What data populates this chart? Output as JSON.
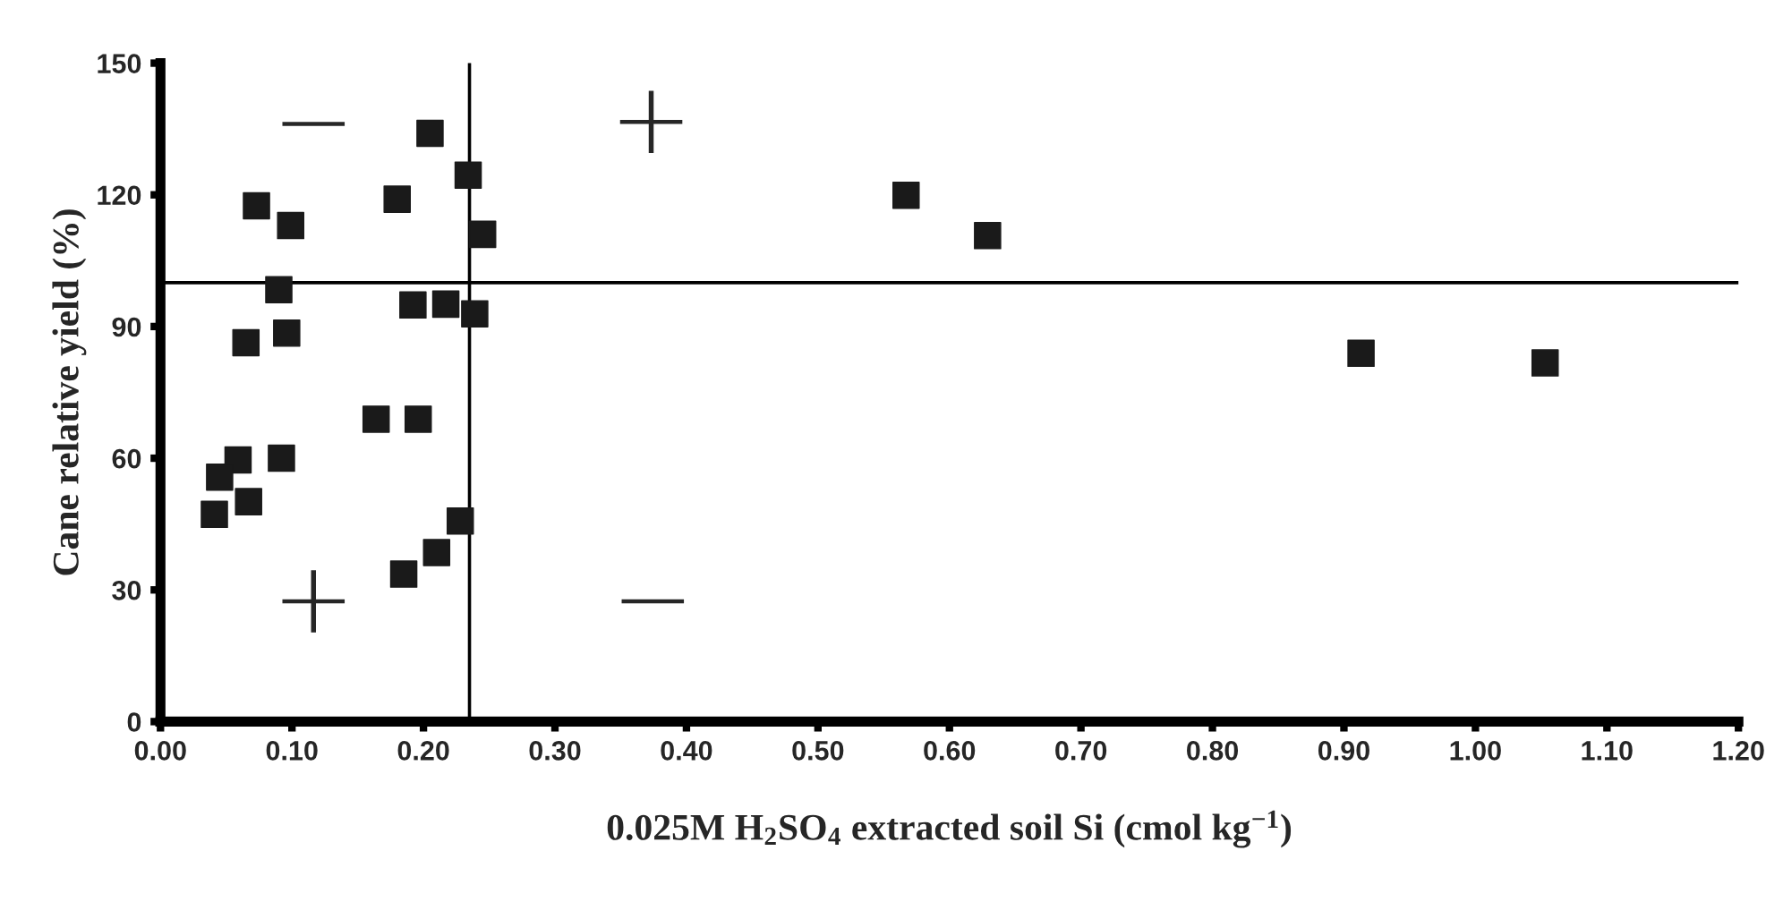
{
  "chart_data": {
    "type": "scatter",
    "xlabel": "0.025M H$_{2}$SO$_{4}$ extracted soil Si (cmol kg$^{−1}$)",
    "ylabel": "Cane relative yield (%)",
    "x": [
      0.205,
      0.234,
      0.073,
      0.099,
      0.18,
      0.245,
      0.09,
      0.192,
      0.217,
      0.239,
      0.096,
      0.065,
      0.164,
      0.196,
      0.059,
      0.092,
      0.045,
      0.067,
      0.041,
      0.228,
      0.21,
      0.185,
      0.567,
      0.629,
      0.913,
      1.053
    ],
    "series": [
      {
        "color": "#1a1a1a",
        "values": [
          134,
          124.5,
          117.5,
          113,
          119,
          111,
          98.4,
          94.9,
          95.1,
          92.9,
          88.5,
          86.3,
          68.9,
          68.9,
          59.6,
          60,
          55.7,
          50.1,
          47.2,
          45.7,
          38.5,
          33.6,
          119.9,
          110.7,
          83.9,
          81.7
        ]
      }
    ],
    "marker": "square",
    "xlim": [
      0,
      1.2
    ],
    "xticks": [
      {
        "value": 0,
        "label": "0.00"
      },
      {
        "value": 0.1,
        "label": "0.10"
      },
      {
        "value": 0.2,
        "label": "0.20"
      },
      {
        "value": 0.3,
        "label": "0.30"
      },
      {
        "value": 0.4,
        "label": "0.40"
      },
      {
        "value": 0.5,
        "label": "0.50"
      },
      {
        "value": 0.6,
        "label": "0.60"
      },
      {
        "value": 0.7,
        "label": "0.70"
      },
      {
        "value": 0.8,
        "label": "0.80"
      },
      {
        "value": 0.9,
        "label": "0.90"
      },
      {
        "value": 1.0,
        "label": "1.00"
      },
      {
        "value": 1.1,
        "label": "1.10"
      },
      {
        "value": 1.2,
        "label": "1.20"
      }
    ],
    "ylim": [
      0,
      150
    ],
    "yticks": [
      0,
      30,
      60,
      90,
      120,
      150
    ],
    "ref_lines": [
      {
        "axis": "y",
        "value": 100,
        "color": "#000000"
      },
      {
        "axis": "x",
        "value": 0.235,
        "color": "#000000"
      }
    ],
    "annotations": [
      "−",
      "+",
      "+",
      "−"
    ],
    "grid": false,
    "legend": false
  }
}
